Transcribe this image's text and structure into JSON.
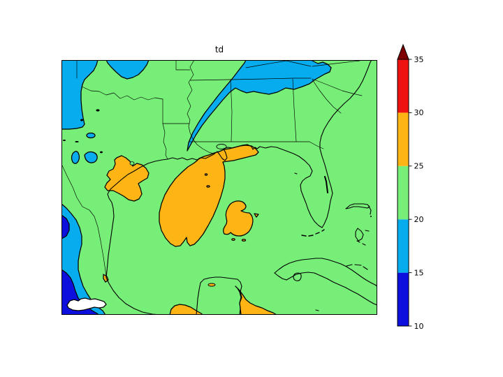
{
  "figure": {
    "title": "td",
    "background": "#ffffff"
  },
  "colorbar": {
    "orientation": "vertical",
    "extend": "max",
    "tick_values": [
      10,
      15,
      20,
      25,
      30,
      35
    ],
    "tick_labels": [
      "10",
      "15",
      "20",
      "25",
      "30",
      "35"
    ],
    "bands": [
      {
        "range": "10-15",
        "color": "#0d10dd"
      },
      {
        "range": "15-20",
        "color": "#06aced"
      },
      {
        "range": "20-25",
        "color": "#77ee77"
      },
      {
        "range": "25-30",
        "color": "#fcb514"
      },
      {
        "range": "30-35",
        "color": "#ee1310"
      },
      {
        "range": ">35",
        "color": "#7e0000"
      }
    ],
    "outline_color": "#000000",
    "below_min_color": "#ffffff"
  },
  "chart_data": {
    "type": "heatmap",
    "subtype": "filled-contour-map",
    "title": "td",
    "region": "Southeastern United States, Gulf of Mexico, Mexico, Yucatan, Cuba, Florida, Bahamas",
    "levels": [
      10,
      15,
      20,
      25,
      30,
      35
    ],
    "colorbar_extend": "max",
    "band_colors": [
      "#0d10dd",
      "#06aced",
      "#77ee77",
      "#fcb514",
      "#ee1310",
      "#7e0000"
    ],
    "background_band": "20-25",
    "features": [
      {
        "band": "15-20",
        "where": "northwest corner wedge along left edge (high plains)"
      },
      {
        "band": "15-20",
        "where": "small lobe on top edge near x=150-215 (Oklahoma panhandle area)"
      },
      {
        "band": "15-20",
        "where": "wide diagonal swath from top edge (Kentucky/Virginia) southwest across Tennessee into Mississippi, tapering tail near the Mississippi river"
      },
      {
        "band": "15-20",
        "where": "three small closed pockets in central Texas"
      },
      {
        "band": "15-20",
        "where": "band along left edge over Mexican mountains from mid-height to bottom"
      },
      {
        "band": "10-15",
        "where": "two cores inside the Mexican mountain band near left edge and bottom-left corner"
      },
      {
        "band": "<10",
        "where": "white pocket inside bottom-left dark-blue core"
      },
      {
        "band": "25-30",
        "where": "blob over the middle/upper Texas coast"
      },
      {
        "band": "25-30",
        "where": "strip along Louisiana-Mississippi coast joined to a large comma-shaped area curving southwest into the western Gulf"
      },
      {
        "band": "25-30",
        "where": "rounded blob in the central Gulf of Mexico with small specks nearby"
      },
      {
        "band": "25-30",
        "where": "lens on bottom edge in the Bay of Campeche and a larger area east of the Yucatan peninsula"
      },
      {
        "band": "20-25",
        "where": "everywhere else including Florida, Cuba, the Atlantic and most land"
      }
    ]
  }
}
